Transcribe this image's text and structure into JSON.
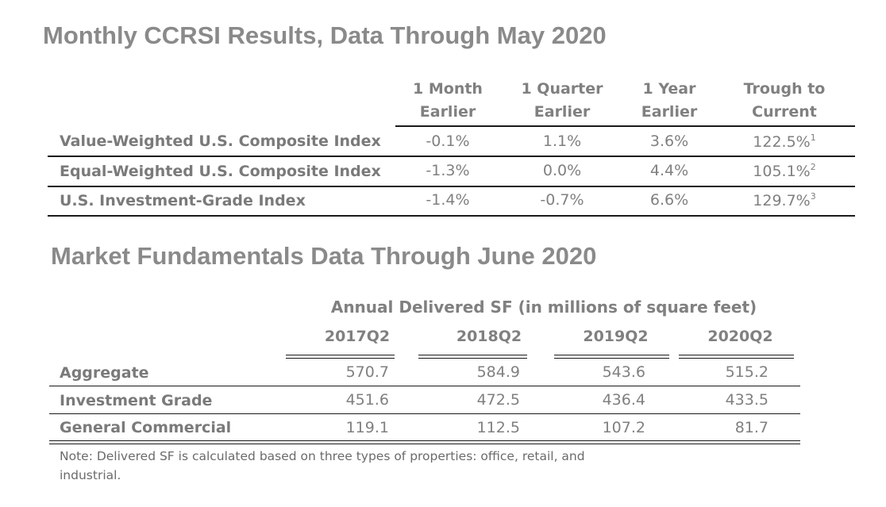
{
  "section1": {
    "title": "Monthly CCRSI Results, Data Through May 2020",
    "columns": [
      {
        "line1": "1 Month",
        "line2": "Earlier"
      },
      {
        "line1": "1 Quarter",
        "line2": "Earlier"
      },
      {
        "line1": "1 Year",
        "line2": "Earlier"
      },
      {
        "line1": "Trough to",
        "line2": "Current"
      }
    ],
    "rows": [
      {
        "label": "Value-Weighted U.S. Composite Index",
        "values": [
          "-0.1%",
          "1.1%",
          "3.6%",
          "122.5%"
        ],
        "footnote": "1"
      },
      {
        "label": "Equal-Weighted U.S. Composite Index",
        "values": [
          "-1.3%",
          "0.0%",
          "4.4%",
          "105.1%"
        ],
        "footnote": "2"
      },
      {
        "label": "U.S. Investment-Grade Index",
        "values": [
          "-1.4%",
          "-0.7%",
          "6.6%",
          "129.7%"
        ],
        "footnote": "3"
      }
    ]
  },
  "section2": {
    "title": "Market Fundamentals Data Through June 2020",
    "group_header": "Annual Delivered SF (in millions of square feet)",
    "columns": [
      "2017Q2",
      "2018Q2",
      "2019Q2",
      "2020Q2"
    ],
    "rows": [
      {
        "label": "Aggregate",
        "values": [
          "570.7",
          "584.9",
          "543.6",
          "515.2"
        ]
      },
      {
        "label": "Investment Grade",
        "values": [
          "451.6",
          "472.5",
          "436.4",
          "433.5"
        ]
      },
      {
        "label": "General Commercial",
        "values": [
          "119.1",
          "112.5",
          "107.2",
          "81.7"
        ]
      }
    ],
    "note": "Note: Delivered SF is calculated based on three types of properties: office, retail, and industrial."
  }
}
